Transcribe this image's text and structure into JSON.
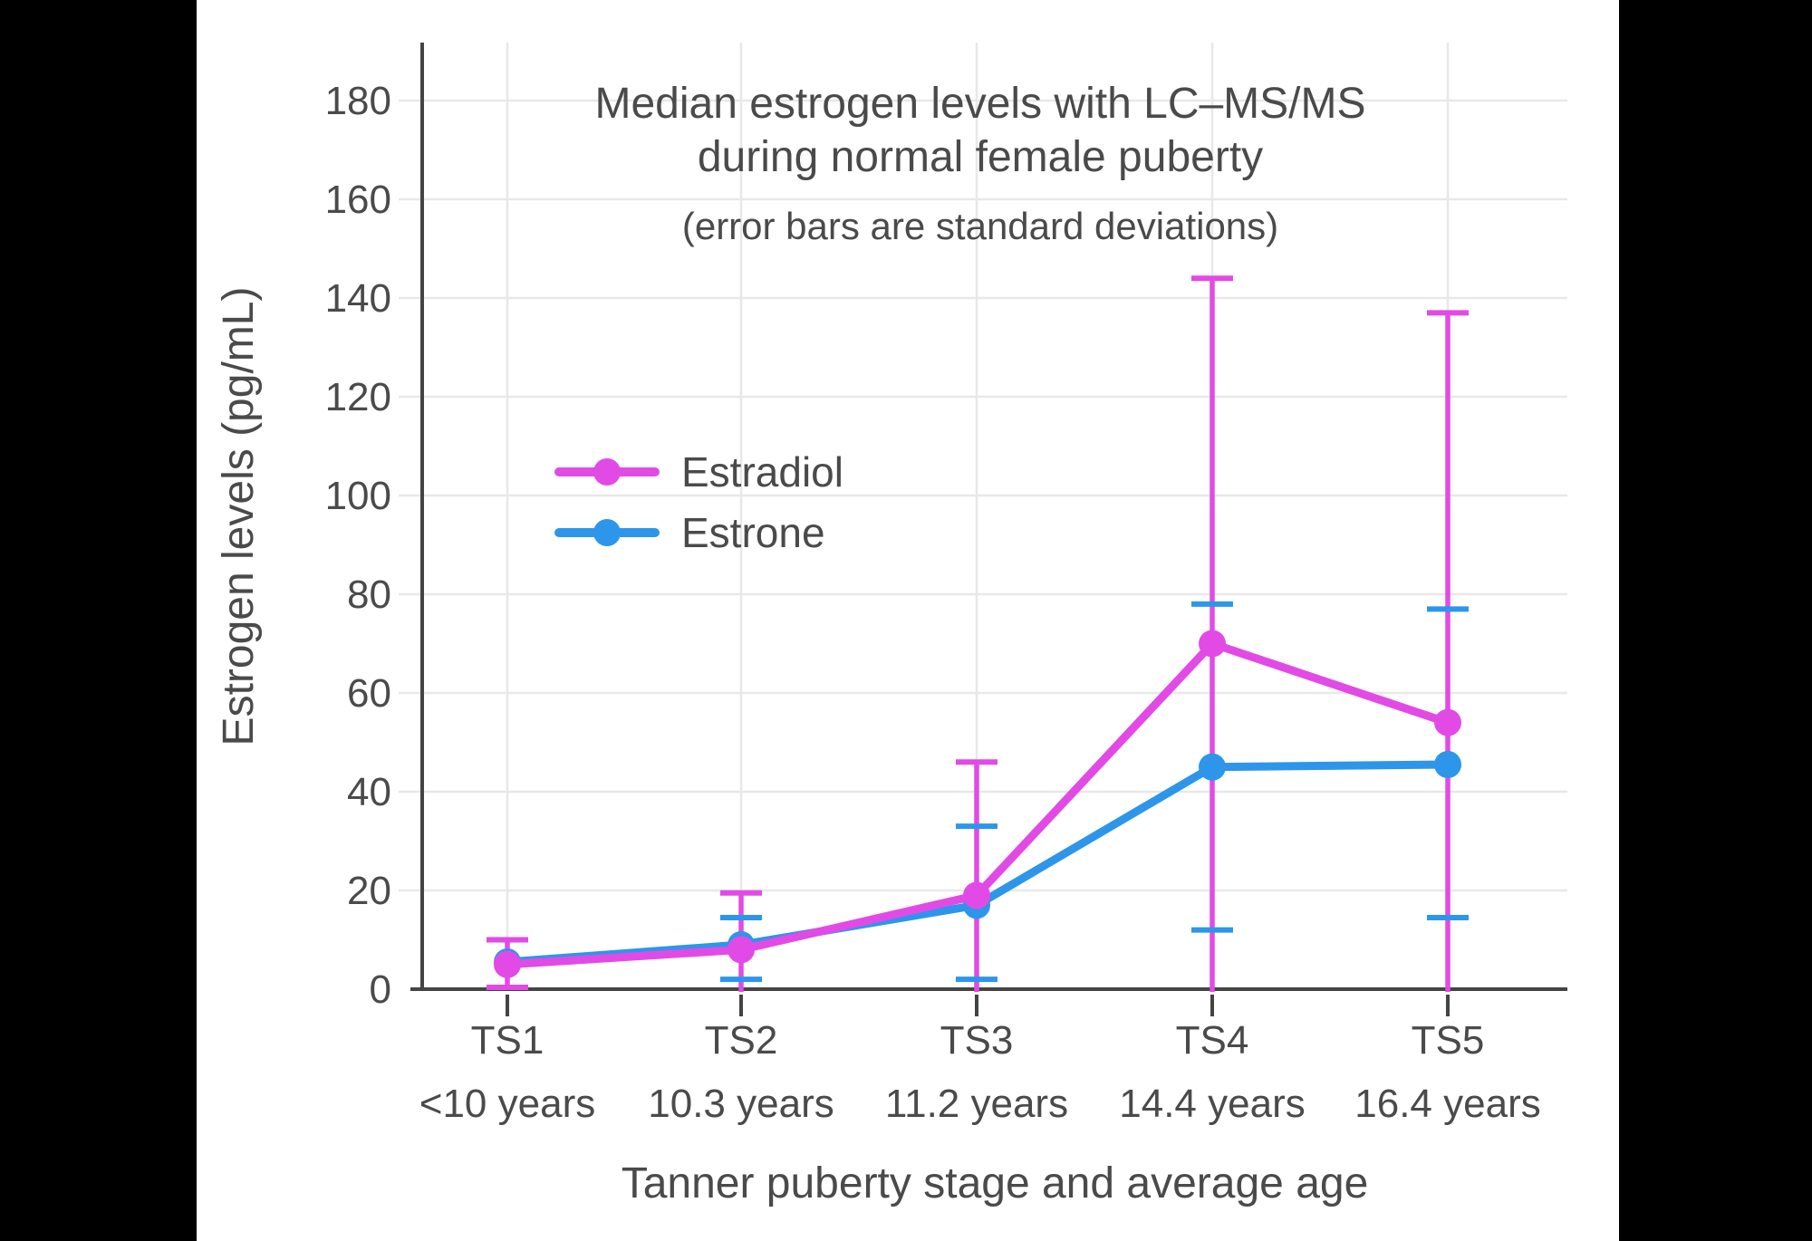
{
  "chart_data": {
    "type": "line",
    "title_lines": [
      "Median estrogen levels with LC–MS/MS",
      "during normal female puberty"
    ],
    "subtitle": "(error bars are standard deviations)",
    "xlabel": "Tanner puberty stage and average age",
    "ylabel": "Estrogen levels (pg/mL)",
    "categories": [
      "TS1",
      "TS2",
      "TS3",
      "TS4",
      "TS5"
    ],
    "category_ages": [
      "<10 years",
      "10.3 years",
      "11.2 years",
      "14.4 years",
      "16.4 years"
    ],
    "y_ticks": [
      0,
      20,
      40,
      60,
      80,
      100,
      120,
      140,
      160,
      180
    ],
    "ylim": [
      0,
      192
    ],
    "grid": true,
    "legend_position": "inside-left",
    "series": [
      {
        "name": "Estradiol",
        "color": "#E24AE6",
        "values": [
          5,
          8,
          19,
          70,
          54
        ],
        "error_top": [
          10,
          19.5,
          46,
          144,
          137
        ],
        "error_bottom": [
          0,
          null,
          null,
          null,
          null
        ],
        "note": "lower error bars at TS2–TS5 extend below 0 and are clipped at the x-axis"
      },
      {
        "name": "Estrone",
        "color": "#2D96EA",
        "values": [
          5.5,
          9,
          17,
          45,
          45.5
        ],
        "error_top": [
          null,
          14.5,
          33,
          78,
          77
        ],
        "error_bottom": [
          null,
          2,
          2,
          12,
          14.5
        ],
        "note": "no error bar visible at TS1 (marker hidden behind Estradiol point)"
      }
    ]
  },
  "colors": {
    "axis": "#444444",
    "grid": "#e8e8e8",
    "text": "#4a4a4a",
    "background": "#ffffff",
    "letterbox": "#000000"
  }
}
